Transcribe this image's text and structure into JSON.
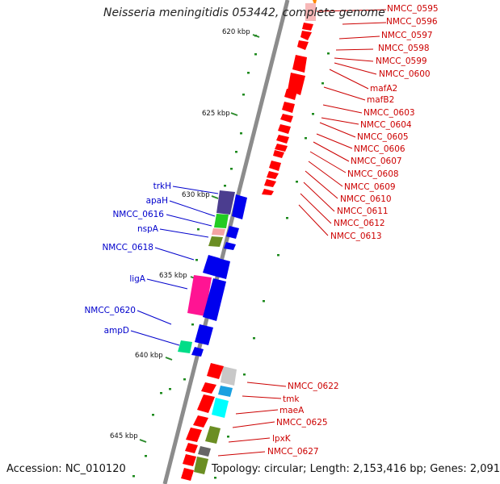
{
  "title": "Neisseria meningitidis 053442, complete genome",
  "footer": {
    "accession": "Accession: NC_010120",
    "topology": "Topology: circular; Length: 2,153,416 bp; Genes: 2,091"
  },
  "colors": {
    "backbone": "#8c8c8c",
    "tick": "#2a8a2a",
    "label_right": "#cc0000",
    "label_left": "#0000cc"
  },
  "ticks": [
    "620 kbp",
    "625 kbp",
    "630 kbp",
    "635 kbp",
    "640 kbp",
    "645 kbp"
  ],
  "labels_right": [
    "NMCC_0595",
    "NMCC_0596",
    "NMCC_0597",
    "NMCC_0598",
    "NMCC_0599",
    "NMCC_0600",
    "mafA2",
    "mafB2",
    "NMCC_0603",
    "NMCC_0604",
    "NMCC_0605",
    "NMCC_0606",
    "NMCC_0607",
    "NMCC_0608",
    "NMCC_0609",
    "NMCC_0610",
    "NMCC_0611",
    "NMCC_0612",
    "NMCC_0613",
    "NMCC_0622",
    "tmk",
    "maeA",
    "NMCC_0625",
    "lpxK",
    "NMCC_0627"
  ],
  "labels_left": [
    "trkH",
    "apaH",
    "NMCC_0616",
    "nspA",
    "NMCC_0618",
    "ligA",
    "NMCC_0620",
    "ampD"
  ]
}
